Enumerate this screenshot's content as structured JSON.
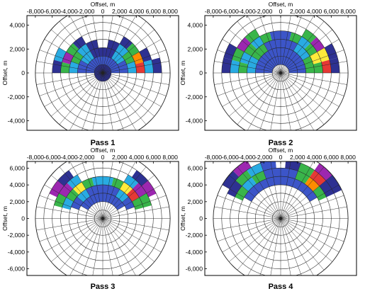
{
  "chart_data": [
    {
      "type": "polar-heatmap",
      "title": "Pass 1",
      "xlabel": "Offset, m",
      "ylabel": "Offset, m",
      "x_ticks": [
        "-8,000",
        "-6,000",
        "-4,000",
        "-2,000",
        "0",
        "2,000",
        "4,000",
        "6,000",
        "8,000"
      ],
      "y_ticks": [
        "4,000",
        "2,000",
        "0",
        "-2,000",
        "-4,000"
      ],
      "rings": 8,
      "spokes": 36,
      "cells": [
        {
          "r": 1,
          "az": [
            0,
            360
          ],
          "color": "#2e3192"
        },
        {
          "r": 2,
          "az": [
            270,
            90
          ],
          "color": "#3c55c8"
        },
        {
          "r": 3,
          "az": [
            270,
            300
          ],
          "color": "#3c55c8"
        },
        {
          "r": 3,
          "az": [
            300,
            330
          ],
          "color": "#29abe2"
        },
        {
          "r": 3,
          "az": [
            330,
            30
          ],
          "color": "#2e3192"
        },
        {
          "r": 3,
          "az": [
            30,
            60
          ],
          "color": "#29abe2"
        },
        {
          "r": 3,
          "az": [
            60,
            90
          ],
          "color": "#3c55c8"
        },
        {
          "r": 4,
          "az": [
            270,
            290
          ],
          "color": "#29abe2"
        },
        {
          "r": 4,
          "az": [
            290,
            310
          ],
          "color": "#39b54a"
        },
        {
          "r": 4,
          "az": [
            310,
            330
          ],
          "color": "#29abe2"
        },
        {
          "r": 4,
          "az": [
            330,
            350
          ],
          "color": "#2e3192"
        },
        {
          "r": 4,
          "az": [
            10,
            30
          ],
          "color": "#2e3192"
        },
        {
          "r": 4,
          "az": [
            30,
            50
          ],
          "color": "#29abe2"
        },
        {
          "r": 4,
          "az": [
            50,
            70
          ],
          "color": "#39b54a"
        },
        {
          "r": 4,
          "az": [
            70,
            90
          ],
          "color": "#29abe2"
        },
        {
          "r": 5,
          "az": [
            270,
            285
          ],
          "color": "#39b54a"
        },
        {
          "r": 5,
          "az": [
            285,
            300
          ],
          "color": "#9c27b0"
        },
        {
          "r": 5,
          "az": [
            300,
            315
          ],
          "color": "#39b54a"
        },
        {
          "r": 5,
          "az": [
            315,
            330
          ],
          "color": "#2e3192"
        },
        {
          "r": 5,
          "az": [
            30,
            45
          ],
          "color": "#2e3192"
        },
        {
          "r": 5,
          "az": [
            45,
            60
          ],
          "color": "#39b54a"
        },
        {
          "r": 5,
          "az": [
            60,
            75
          ],
          "color": "#ff8c00"
        },
        {
          "r": 5,
          "az": [
            75,
            90
          ],
          "color": "#e53935"
        },
        {
          "r": 6,
          "az": [
            270,
            285
          ],
          "color": "#2e3192"
        },
        {
          "r": 6,
          "az": [
            285,
            300
          ],
          "color": "#29abe2"
        },
        {
          "r": 6,
          "az": [
            60,
            75
          ],
          "color": "#2e3192"
        },
        {
          "r": 6,
          "az": [
            75,
            90
          ],
          "color": "#29abe2"
        },
        {
          "r": 7,
          "az": [
            75,
            90
          ],
          "color": "#2e3192"
        }
      ]
    },
    {
      "type": "polar-heatmap",
      "title": "Pass 2",
      "xlabel": "Offset, m",
      "ylabel": "Offset, m",
      "x_ticks": [
        "-8,000",
        "-6,000",
        "-4,000",
        "-2,000",
        "0",
        "2,000",
        "4,000",
        "6,000",
        "8,000"
      ],
      "y_ticks": [
        "4,000",
        "2,000",
        "0",
        "-2,000",
        "-4,000"
      ],
      "rings": 8,
      "spokes": 36,
      "cells": [
        {
          "r": 2,
          "az": [
            270,
            90
          ],
          "color": "#3c55c8"
        },
        {
          "r": 3,
          "az": [
            270,
            90
          ],
          "color": "#3c55c8"
        },
        {
          "r": 4,
          "az": [
            270,
            300
          ],
          "color": "#29abe2"
        },
        {
          "r": 4,
          "az": [
            300,
            330
          ],
          "color": "#39b54a"
        },
        {
          "r": 4,
          "az": [
            330,
            30
          ],
          "color": "#3c55c8"
        },
        {
          "r": 4,
          "az": [
            30,
            60
          ],
          "color": "#29abe2"
        },
        {
          "r": 4,
          "az": [
            60,
            90
          ],
          "color": "#39b54a"
        },
        {
          "r": 5,
          "az": [
            270,
            285
          ],
          "color": "#39b54a"
        },
        {
          "r": 5,
          "az": [
            285,
            300
          ],
          "color": "#29abe2"
        },
        {
          "r": 5,
          "az": [
            300,
            315
          ],
          "color": "#39b54a"
        },
        {
          "r": 5,
          "az": [
            315,
            330
          ],
          "color": "#29abe2"
        },
        {
          "r": 5,
          "az": [
            330,
            345
          ],
          "color": "#39b54a"
        },
        {
          "r": 5,
          "az": [
            345,
            15
          ],
          "color": "#3c55c8"
        },
        {
          "r": 5,
          "az": [
            15,
            30
          ],
          "color": "#39b54a"
        },
        {
          "r": 5,
          "az": [
            30,
            45
          ],
          "color": "#29abe2"
        },
        {
          "r": 5,
          "az": [
            45,
            60
          ],
          "color": "#39b54a"
        },
        {
          "r": 5,
          "az": [
            60,
            75
          ],
          "color": "#ffeb3b"
        },
        {
          "r": 5,
          "az": [
            75,
            90
          ],
          "color": "#39b54a"
        },
        {
          "r": 6,
          "az": [
            270,
            285
          ],
          "color": "#29abe2"
        },
        {
          "r": 6,
          "az": [
            285,
            300
          ],
          "color": "#39b54a"
        },
        {
          "r": 6,
          "az": [
            300,
            315
          ],
          "color": "#9c27b0"
        },
        {
          "r": 6,
          "az": [
            315,
            330
          ],
          "color": "#39b54a"
        },
        {
          "r": 6,
          "az": [
            30,
            45
          ],
          "color": "#39b54a"
        },
        {
          "r": 6,
          "az": [
            45,
            60
          ],
          "color": "#9c27b0"
        },
        {
          "r": 6,
          "az": [
            60,
            75
          ],
          "color": "#ffeb3b"
        },
        {
          "r": 6,
          "az": [
            75,
            90
          ],
          "color": "#e53935"
        },
        {
          "r": 7,
          "az": [
            270,
            285
          ],
          "color": "#2e3192"
        },
        {
          "r": 7,
          "az": [
            285,
            300
          ],
          "color": "#2e3192"
        },
        {
          "r": 7,
          "az": [
            60,
            75
          ],
          "color": "#2e3192"
        },
        {
          "r": 7,
          "az": [
            75,
            90
          ],
          "color": "#2e3192"
        }
      ]
    },
    {
      "type": "polar-heatmap",
      "title": "Pass 3",
      "xlabel": "Offset, m",
      "ylabel": "Offset, m",
      "x_ticks": [
        "-8,000",
        "-6,000",
        "-4,000",
        "-2,000",
        "0",
        "2,000",
        "4,000",
        "6,000",
        "8,000"
      ],
      "y_ticks": [
        "6,000",
        "4,000",
        "2,000",
        "0",
        "-2,000",
        "-4,000",
        "-6,000"
      ],
      "rings": 8,
      "spokes": 36,
      "cells": [
        {
          "r": 3,
          "az": [
            300,
            60
          ],
          "color": "#3c55c8"
        },
        {
          "r": 4,
          "az": [
            290,
            310
          ],
          "color": "#3c55c8"
        },
        {
          "r": 4,
          "az": [
            310,
            330
          ],
          "color": "#29abe2"
        },
        {
          "r": 4,
          "az": [
            330,
            30
          ],
          "color": "#3c55c8"
        },
        {
          "r": 4,
          "az": [
            30,
            50
          ],
          "color": "#29abe2"
        },
        {
          "r": 4,
          "az": [
            50,
            70
          ],
          "color": "#3c55c8"
        },
        {
          "r": 5,
          "az": [
            285,
            300
          ],
          "color": "#29abe2"
        },
        {
          "r": 5,
          "az": [
            300,
            315
          ],
          "color": "#39b54a"
        },
        {
          "r": 5,
          "az": [
            315,
            330
          ],
          "color": "#ffeb3b"
        },
        {
          "r": 5,
          "az": [
            330,
            345
          ],
          "color": "#39b54a"
        },
        {
          "r": 5,
          "az": [
            345,
            15
          ],
          "color": "#29abe2"
        },
        {
          "r": 5,
          "az": [
            15,
            30
          ],
          "color": "#39b54a"
        },
        {
          "r": 5,
          "az": [
            30,
            45
          ],
          "color": "#ffeb3b"
        },
        {
          "r": 5,
          "az": [
            45,
            60
          ],
          "color": "#e53935"
        },
        {
          "r": 5,
          "az": [
            60,
            75
          ],
          "color": "#39b54a"
        },
        {
          "r": 6,
          "az": [
            285,
            300
          ],
          "color": "#39b54a"
        },
        {
          "r": 6,
          "az": [
            300,
            315
          ],
          "color": "#9c27b0"
        },
        {
          "r": 6,
          "az": [
            315,
            330
          ],
          "color": "#29abe2"
        },
        {
          "r": 6,
          "az": [
            30,
            45
          ],
          "color": "#29abe2"
        },
        {
          "r": 6,
          "az": [
            45,
            60
          ],
          "color": "#9c27b0"
        },
        {
          "r": 6,
          "az": [
            60,
            75
          ],
          "color": "#39b54a"
        },
        {
          "r": 7,
          "az": [
            295,
            310
          ],
          "color": "#9c27b0"
        },
        {
          "r": 7,
          "az": [
            310,
            325
          ],
          "color": "#2e3192"
        },
        {
          "r": 7,
          "az": [
            35,
            50
          ],
          "color": "#2e3192"
        },
        {
          "r": 7,
          "az": [
            50,
            65
          ],
          "color": "#9c27b0"
        }
      ]
    },
    {
      "type": "polar-heatmap",
      "title": "Pass 4",
      "xlabel": "Offset, m",
      "ylabel": "Offset, m",
      "x_ticks": [
        "-8,000",
        "-6,000",
        "-4,000",
        "-2,000",
        "0",
        "2,000",
        "4,000",
        "6,000",
        "8,000"
      ],
      "y_ticks": [
        "6,000",
        "4,000",
        "2,000",
        "0",
        "-2,000",
        "-4,000",
        "-6,000"
      ],
      "rings": 8,
      "spokes": 36,
      "cells": [
        {
          "r": 5,
          "az": [
            300,
            60
          ],
          "color": "#3c55c8"
        },
        {
          "r": 6,
          "az": [
            295,
            310
          ],
          "color": "#39b54a"
        },
        {
          "r": 6,
          "az": [
            310,
            325
          ],
          "color": "#29abe2"
        },
        {
          "r": 6,
          "az": [
            325,
            340
          ],
          "color": "#39b54a"
        },
        {
          "r": 6,
          "az": [
            340,
            20
          ],
          "color": "#3c55c8"
        },
        {
          "r": 6,
          "az": [
            20,
            35
          ],
          "color": "#39b54a"
        },
        {
          "r": 6,
          "az": [
            35,
            50
          ],
          "color": "#ff8c00"
        },
        {
          "r": 6,
          "az": [
            50,
            65
          ],
          "color": "#39b54a"
        },
        {
          "r": 7,
          "az": [
            295,
            310
          ],
          "color": "#2e3192"
        },
        {
          "r": 7,
          "az": [
            310,
            325
          ],
          "color": "#39b54a"
        },
        {
          "r": 7,
          "az": [
            325,
            340
          ],
          "color": "#29abe2"
        },
        {
          "r": 7,
          "az": [
            340,
            355
          ],
          "color": "#3c55c8"
        },
        {
          "r": 7,
          "az": [
            5,
            20
          ],
          "color": "#2e3192"
        },
        {
          "r": 7,
          "az": [
            20,
            35
          ],
          "color": "#39b54a"
        },
        {
          "r": 7,
          "az": [
            35,
            50
          ],
          "color": "#e53935"
        },
        {
          "r": 7,
          "az": [
            50,
            65
          ],
          "color": "#2e3192"
        },
        {
          "r": 8,
          "az": [
            300,
            315
          ],
          "color": "#2e3192"
        },
        {
          "r": 8,
          "az": [
            315,
            330
          ],
          "color": "#9c27b0"
        },
        {
          "r": 8,
          "az": [
            340,
            355
          ],
          "color": "#2e3192"
        },
        {
          "r": 8,
          "az": [
            35,
            50
          ],
          "color": "#9c27b0"
        },
        {
          "r": 8,
          "az": [
            50,
            65
          ],
          "color": "#2e3192"
        }
      ]
    }
  ]
}
